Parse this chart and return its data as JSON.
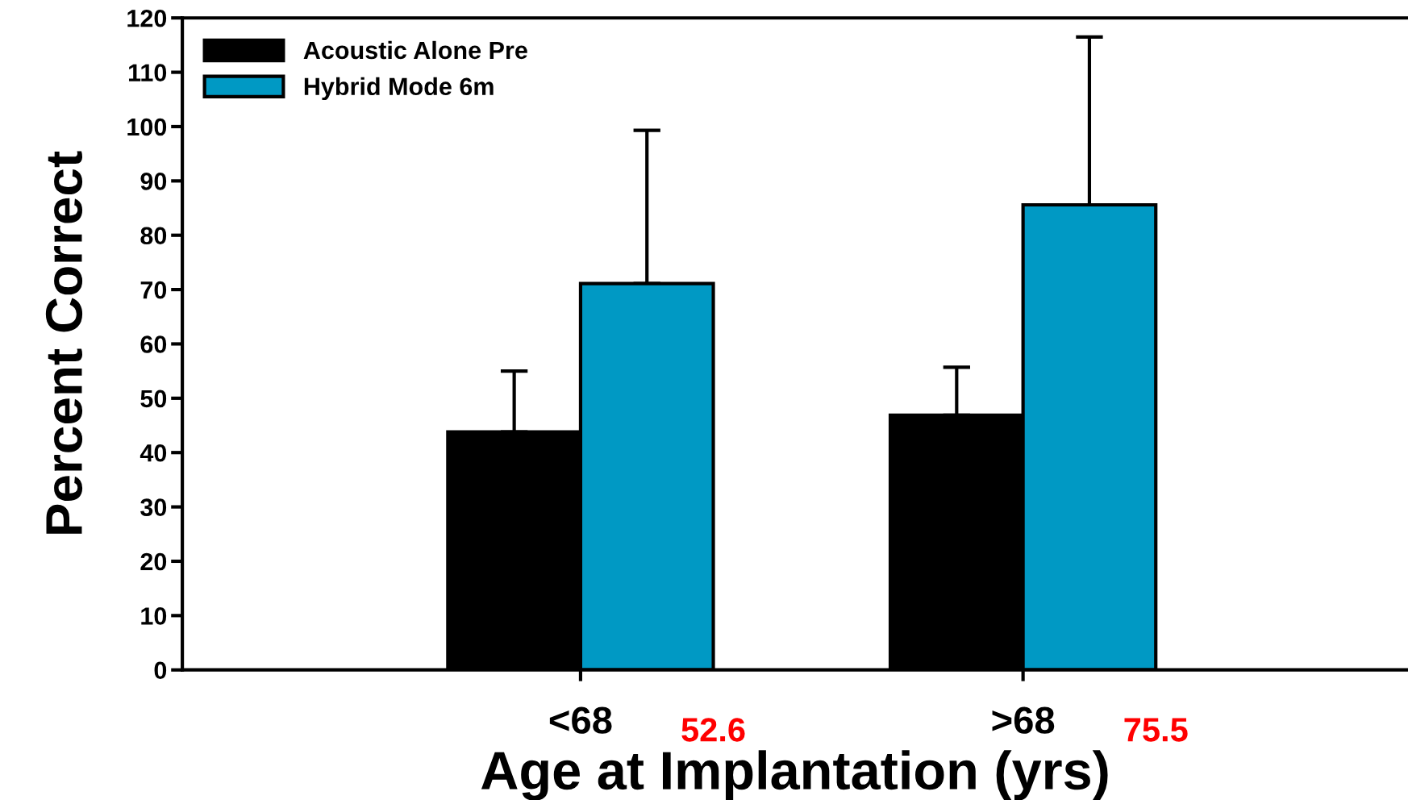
{
  "chart_data": {
    "type": "bar",
    "categories": [
      "<68",
      ">68"
    ],
    "xlabel": "Age at Implantation (yrs)",
    "ylabel": "Percent Correct",
    "series": [
      {
        "name": "Acoustic Alone Pre",
        "color": "#000000",
        "values": [
          43.8,
          46.9
        ],
        "errors": [
          [
            43.8,
            55.0
          ],
          [
            46.9,
            55.7
          ]
        ]
      },
      {
        "name": "Hybrid Mode 6m",
        "color": "#0099c4",
        "values": [
          71.1,
          85.6
        ],
        "errors": [
          [
            71.1,
            99.3
          ],
          [
            85.6,
            116.5
          ]
        ]
      }
    ],
    "annotations": [
      "52.6",
      "75.5"
    ],
    "ylim": [
      0,
      120
    ],
    "yticks": [
      0,
      10,
      20,
      30,
      40,
      50,
      60,
      70,
      80,
      90,
      100,
      110,
      120
    ],
    "grid": false,
    "legend": "top left"
  }
}
